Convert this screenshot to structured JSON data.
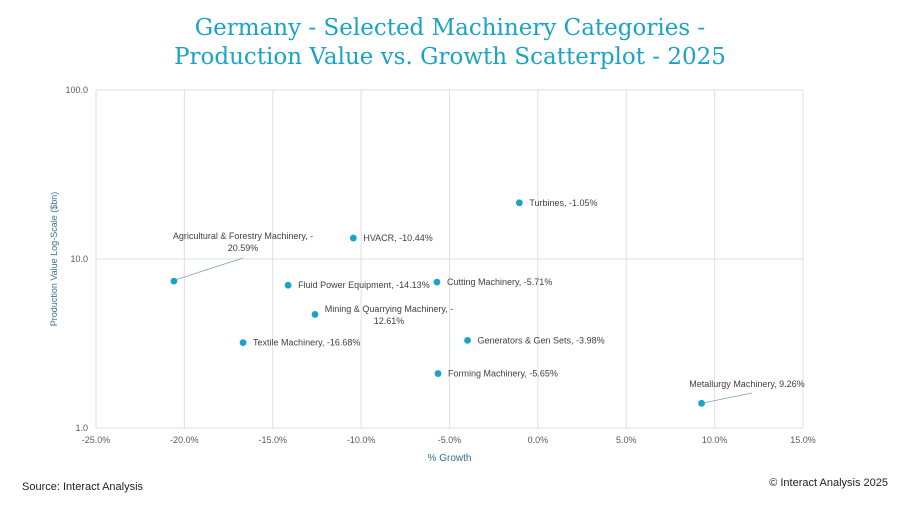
{
  "header": {
    "title_line1": "Germany - Selected Machinery Categories -",
    "title_line2": "Production Value vs. Growth Scatterplot - 2025"
  },
  "footer": {
    "source": "Source: Interact Analysis",
    "copyright": "© Interact Analysis 2025"
  },
  "colors": {
    "title": "#1aa3c6",
    "point": "#1aa3c6",
    "grid": "#d9e1ea",
    "axis_text": "#595959",
    "label_text": "#404040"
  },
  "chart_data": {
    "type": "scatter",
    "title": "Germany - Selected Machinery Categories - Production Value vs. Growth Scatterplot - 2025",
    "xlabel": "% Growth",
    "ylabel": "Production Value Log-Scale ($bn)",
    "xlim": [
      -25.0,
      15.0
    ],
    "ylim": [
      1.0,
      100.0
    ],
    "y_scale": "log",
    "grid": true,
    "x_ticks": [
      "-25.0%",
      "-20.0%",
      "-15.0%",
      "-10.0%",
      "-5.0%",
      "0.0%",
      "5.0%",
      "10.0%",
      "15.0%"
    ],
    "x_tick_values": [
      -25,
      -20,
      -15,
      -10,
      -5,
      0,
      5,
      10,
      15
    ],
    "y_ticks": [
      "1.0",
      "10.0",
      "100.0"
    ],
    "y_tick_values": [
      1,
      10,
      100
    ],
    "points": [
      {
        "label": [
          "Turbines, -1.05%"
        ],
        "x": -1.05,
        "y": 21.5
      },
      {
        "label": [
          "HVACR, -10.44%"
        ],
        "x": -10.44,
        "y": 13.3
      },
      {
        "label": [
          "Agricultural & Forestry Machinery, -",
          "20.59%"
        ],
        "x": -20.59,
        "y": 7.4
      },
      {
        "label": [
          "Cutting Machinery, -5.71%"
        ],
        "x": -5.71,
        "y": 7.3
      },
      {
        "label": [
          "Fluid Power Equipment, -14.13%"
        ],
        "x": -14.13,
        "y": 7.0
      },
      {
        "label": [
          "Mining & Quarrying Machinery, -",
          "12.61%"
        ],
        "x": -12.61,
        "y": 4.7
      },
      {
        "label": [
          "Generators & Gen Sets, -3.98%"
        ],
        "x": -3.98,
        "y": 3.3
      },
      {
        "label": [
          "Textile Machinery, -16.68%"
        ],
        "x": -16.68,
        "y": 3.2
      },
      {
        "label": [
          "Forming Machinery, -5.65%"
        ],
        "x": -5.65,
        "y": 2.1
      },
      {
        "label": [
          "Metallurgy Machinery, 9.26%"
        ],
        "x": 9.26,
        "y": 1.4
      }
    ]
  }
}
